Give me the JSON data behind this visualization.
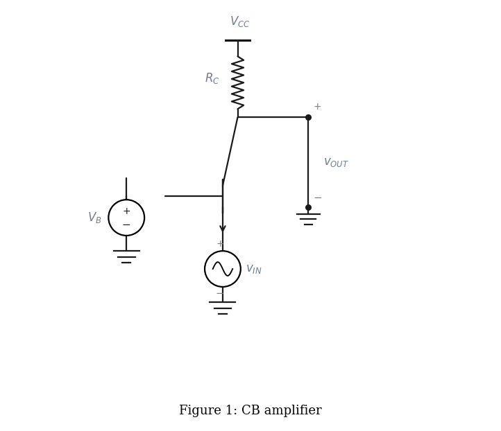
{
  "title": "Figure 1: CB amplifier",
  "bg_color": "#ffffff",
  "line_color": "#1a1a1a",
  "label_color": "#6b7f96",
  "figsize": [
    7.22,
    6.22
  ],
  "dpi": 100,
  "vcc_label": "$V_{CC}$",
  "rc_label": "$R_C$",
  "vb_label": "$V_B$",
  "vin_label": "$v_{IN}$",
  "vout_label": "$v_{OUT}$"
}
